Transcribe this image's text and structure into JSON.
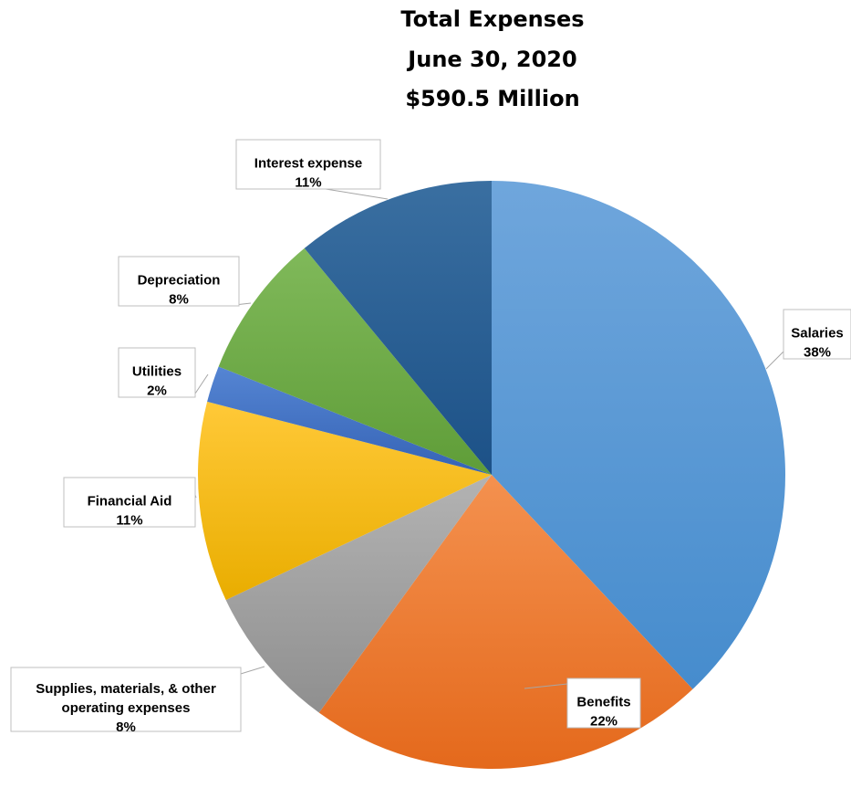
{
  "chart_data": {
    "type": "pie",
    "title": [
      "Total Expenses",
      "June 30, 2020",
      "$590.5 Million"
    ],
    "slices": [
      {
        "name": "Salaries",
        "value": 38,
        "label_value": "38%",
        "color": "#5B9BD5"
      },
      {
        "name": "Benefits",
        "value": 22,
        "label_value": "22%",
        "color": "#ED7D31"
      },
      {
        "name": "Supplies, materials, & other operating expenses",
        "value": 8,
        "label_value": "8%",
        "color": "#A5A5A5"
      },
      {
        "name": "Financial Aid",
        "value": 11,
        "label_value": "11%",
        "color": "#FFC000"
      },
      {
        "name": "Utilities",
        "value": 2,
        "label_value": "2%",
        "color": "#4472C4"
      },
      {
        "name": "Depreciation",
        "value": 8,
        "label_value": "8%",
        "color": "#70AD47"
      },
      {
        "name": "Interest expense",
        "value": 11,
        "label_value": "11%",
        "color": "#255E91"
      }
    ],
    "legend": "none",
    "data_labels": "callout"
  }
}
